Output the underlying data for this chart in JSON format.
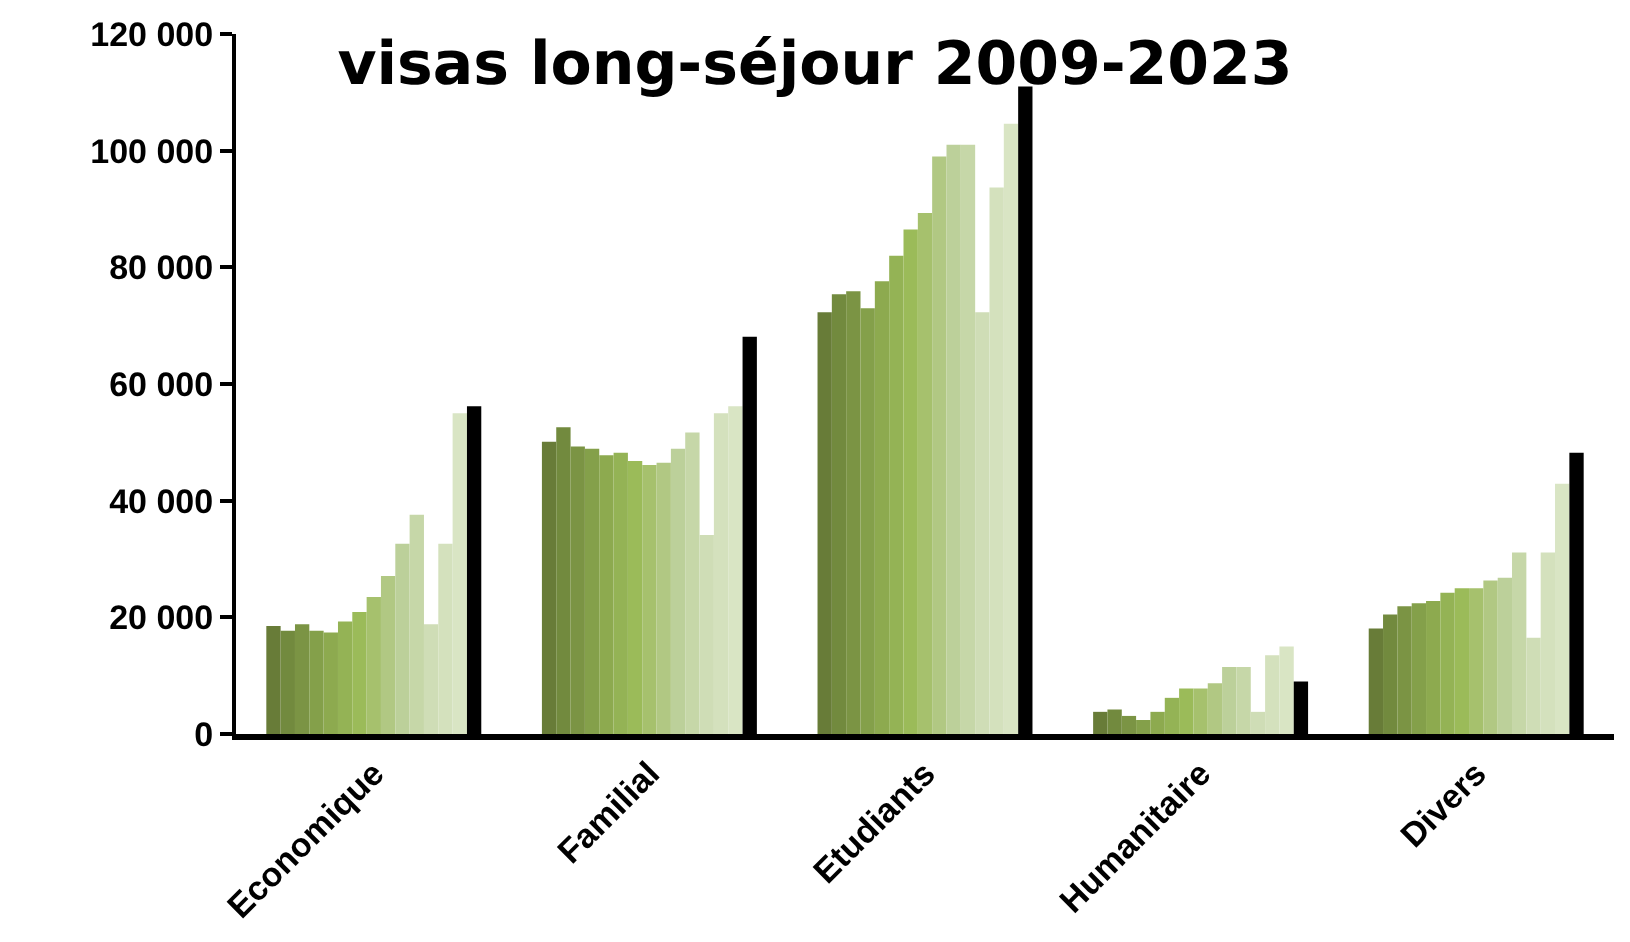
{
  "chart_data": {
    "type": "bar",
    "title": "visas long-séjour 2009-2023",
    "categories": [
      "Economique",
      "Familial",
      "Etudiants",
      "Humanitaire",
      "Divers"
    ],
    "ylim": [
      0,
      120000
    ],
    "yticks": [
      {
        "value": 0,
        "label": "0"
      },
      {
        "value": 20000,
        "label": "20 000"
      },
      {
        "value": 40000,
        "label": "40 000"
      },
      {
        "value": 60000,
        "label": "60 000"
      },
      {
        "value": 80000,
        "label": "80 000"
      },
      {
        "value": 100000,
        "label": "100 000"
      },
      {
        "value": 120000,
        "label": "120 000"
      }
    ],
    "series": [
      {
        "color": "#687c38",
        "values": [
          18500,
          50100,
          72300,
          3800,
          18100
        ]
      },
      {
        "color": "#728a3e",
        "values": [
          17700,
          52600,
          75400,
          4200,
          20500
        ]
      },
      {
        "color": "#7b9444",
        "values": [
          18800,
          49300,
          75900,
          3100,
          21900
        ]
      },
      {
        "color": "#84a04a",
        "values": [
          17700,
          48900,
          73000,
          2400,
          22400
        ]
      },
      {
        "color": "#8daa4f",
        "values": [
          17400,
          47800,
          77600,
          3800,
          22800
        ]
      },
      {
        "color": "#94b355",
        "values": [
          19300,
          48200,
          82000,
          6200,
          24200
        ]
      },
      {
        "color": "#9bbb59",
        "values": [
          20900,
          46800,
          86500,
          7800,
          25000
        ]
      },
      {
        "color": "#a6c16d",
        "values": [
          23500,
          46100,
          89300,
          7800,
          25000
        ]
      },
      {
        "color": "#b1c883",
        "values": [
          27100,
          46500,
          99000,
          8700,
          26300
        ]
      },
      {
        "color": "#bcd09a",
        "values": [
          32600,
          48900,
          101000,
          11500,
          26800
        ]
      },
      {
        "color": "#c6d7a8",
        "values": [
          37600,
          51700,
          101000,
          11500,
          31100
        ]
      },
      {
        "color": "#cfddb6",
        "values": [
          18800,
          34100,
          72300,
          3800,
          16500
        ]
      },
      {
        "color": "#d4e1bd",
        "values": [
          32600,
          55000,
          93700,
          13500,
          31100
        ]
      },
      {
        "color": "#d9e5c4",
        "values": [
          55000,
          56200,
          104600,
          15000,
          42900
        ]
      },
      {
        "color": "#000000",
        "values": [
          56200,
          68100,
          111000,
          9000,
          48200
        ]
      }
    ]
  }
}
